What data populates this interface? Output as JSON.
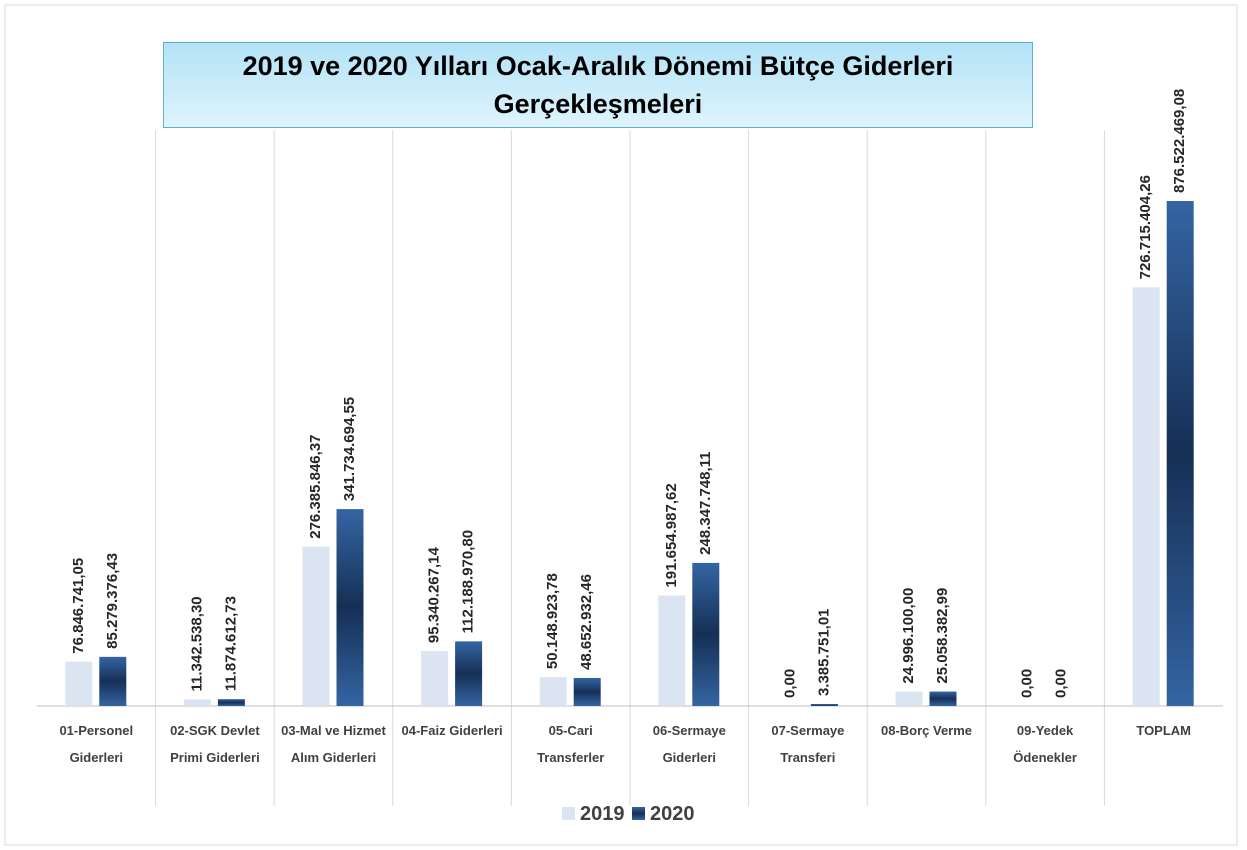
{
  "chart_data": {
    "type": "bar",
    "title": "2019 ve 2020 Yılları Ocak-Aralık Dönemi Bütçe Giderleri Gerçekleşmeleri",
    "categories": [
      "01-Personel Giderleri",
      "02-SGK Devlet Primi Giderleri",
      "03-Mal ve Hizmet Alım Giderleri",
      "04-Faiz Giderleri",
      "05-Cari Transferler",
      "06-Sermaye Giderleri",
      "07-Sermaye Transferi",
      "08-Borç Verme",
      "09-Yedek Ödenekler",
      "TOPLAM"
    ],
    "series": [
      {
        "name": "2019",
        "color": "#dbe4f1",
        "values": [
          76846741.05,
          11342538.3,
          276385846.37,
          95340267.14,
          50148923.78,
          191654987.62,
          0,
          24996100.0,
          0,
          726715404.26
        ],
        "value_labels": [
          "76.846.741,05",
          "11.342.538,30",
          "276.385.846,37",
          "95.340.267,14",
          "50.148.923,78",
          "191.654.987,62",
          "0,00",
          "24.996.100,00",
          "0,00",
          "726.715.404,26"
        ]
      },
      {
        "name": "2020",
        "color": "#2b5a94",
        "values": [
          85279376.43,
          11874612.73,
          341734694.55,
          112188970.8,
          48652932.46,
          248347748.11,
          3385751.01,
          25058382.99,
          0,
          876522469.08
        ],
        "value_labels": [
          "85.279.376,43",
          "11.874.612,73",
          "341.734.694,55",
          "112.188.970,80",
          "48.652.932,46",
          "248.347.748,11",
          "3.385.751,01",
          "25.058.382,99",
          "0,00",
          "876.522.469,08"
        ]
      }
    ],
    "legend": "bottom"
  }
}
